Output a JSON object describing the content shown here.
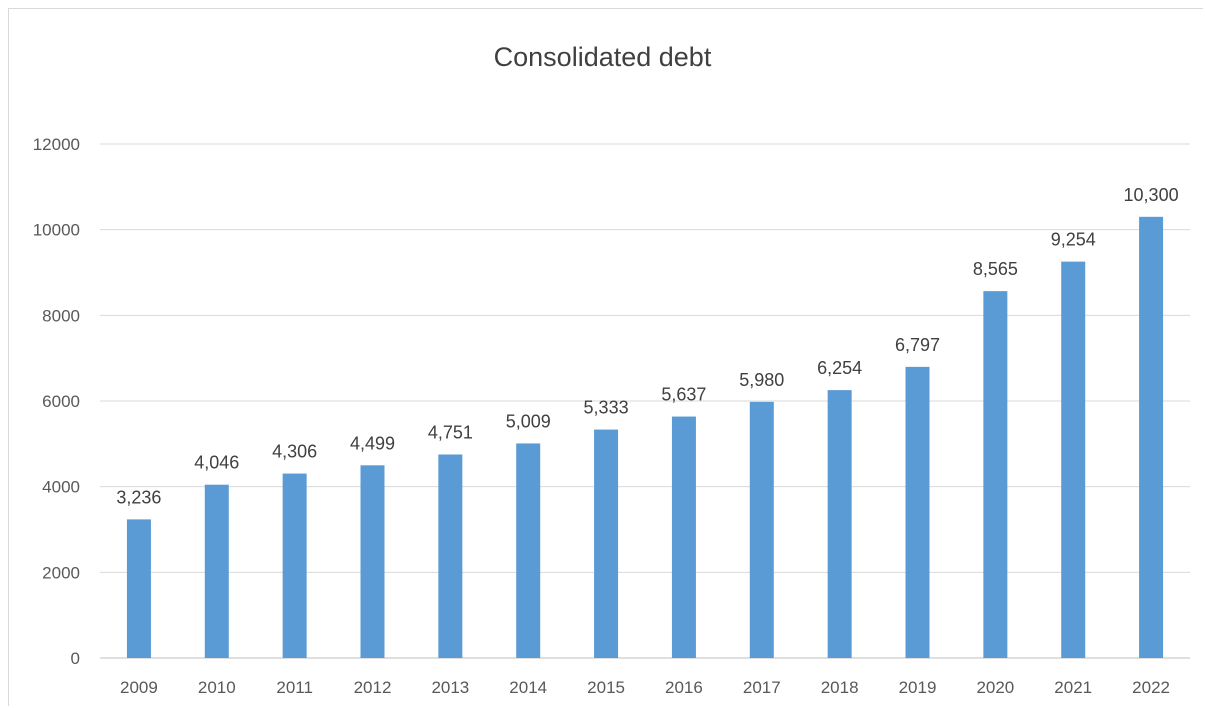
{
  "chart_data": {
    "type": "bar",
    "title": "Consolidated debt",
    "xlabel": "",
    "ylabel": "",
    "categories": [
      "2009",
      "2010",
      "2011",
      "2012",
      "2013",
      "2014",
      "2015",
      "2016",
      "2017",
      "2018",
      "2019",
      "2020",
      "2021",
      "2022"
    ],
    "values": [
      3236,
      4046,
      4306,
      4499,
      4751,
      5009,
      5333,
      5637,
      5980,
      6254,
      6797,
      8565,
      9254,
      10300
    ],
    "data_labels": [
      "3,236",
      "4,046",
      "4,306",
      "4,499",
      "4,751",
      "5,009",
      "5,333",
      "5,637",
      "5,980",
      "6,254",
      "6,797",
      "8,565",
      "9,254",
      "10,300"
    ],
    "yticks": [
      0,
      2000,
      4000,
      6000,
      8000,
      10000,
      12000
    ],
    "ytick_labels": [
      "0",
      "2000",
      "4000",
      "6000",
      "8000",
      "10000",
      "12000"
    ],
    "ylim": [
      0,
      12000
    ],
    "grid": true,
    "legend": "none",
    "colors": {
      "bar": "#5b9bd5",
      "grid": "#d9d9d9"
    }
  }
}
